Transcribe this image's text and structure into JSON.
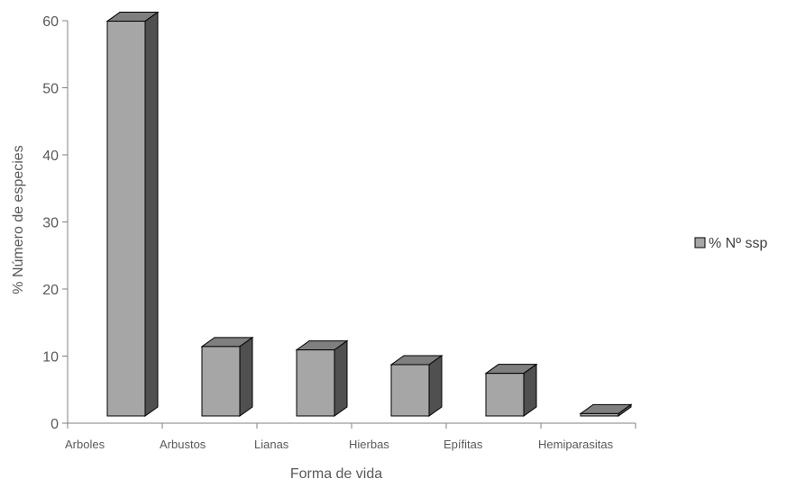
{
  "chart_data": {
    "type": "bar",
    "style": "3d-column",
    "categories": [
      "Arboles",
      "Arbustos",
      "Lianas",
      "Hierbas",
      "Epífitas",
      "Hemiparasitas"
    ],
    "series": [
      {
        "name": "% Nº ssp",
        "values": [
          61,
          12.5,
          12,
          9.8,
          8.5,
          2.5
        ]
      }
    ],
    "xlabel": "Forma de vida",
    "ylabel": "% Número de especies",
    "ylim": [
      0,
      60
    ],
    "yticks": [
      "0",
      "10",
      "20",
      "30",
      "40",
      "50",
      "60"
    ],
    "grid": false,
    "legend_position": "right",
    "colors": {
      "front": "#a6a6a6",
      "top": "#7f7f7f",
      "side": "#505050",
      "edge": "#000000",
      "axis": "#808080"
    }
  }
}
